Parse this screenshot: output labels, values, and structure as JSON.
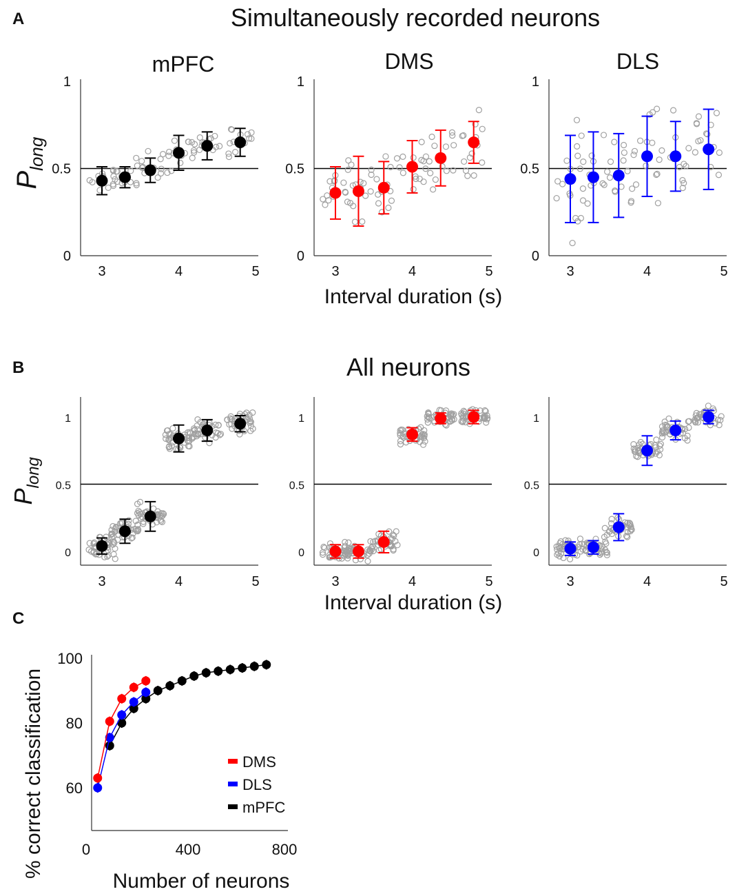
{
  "panel_labels": {
    "a": "A",
    "b": "B",
    "c": "C"
  },
  "titles": {
    "a": "Simultaneously recorded neurons",
    "b": "All neurons"
  },
  "colors": {
    "mPFC": "#000000",
    "DMS": "#ff0000",
    "DLS": "#0000ff",
    "scatter": "#a0a0a0"
  },
  "chart_data": [
    {
      "type": "scatter",
      "panel": "A",
      "ylabel_main": "P",
      "ylabel_sub": "long",
      "xlabel": "Interval duration (s)",
      "xlim": [
        2.75,
        5
      ],
      "ylim": [
        0,
        1
      ],
      "xticks": [
        "3",
        "4",
        "5"
      ],
      "yticks": [
        "0",
        "0.5",
        "1"
      ],
      "reference_line": 0.5,
      "x": [
        3.0,
        3.3,
        3.63,
        4.0,
        4.37,
        4.8
      ],
      "series": [
        {
          "name": "mPFC",
          "mean": [
            0.43,
            0.45,
            0.49,
            0.59,
            0.63,
            0.65
          ],
          "err": [
            0.08,
            0.06,
            0.07,
            0.1,
            0.08,
            0.08
          ],
          "spread": 0.08
        },
        {
          "name": "DMS",
          "mean": [
            0.36,
            0.37,
            0.39,
            0.51,
            0.56,
            0.65
          ],
          "err": [
            0.15,
            0.2,
            0.15,
            0.15,
            0.16,
            0.12
          ],
          "spread": 0.17
        },
        {
          "name": "DLS",
          "mean": [
            0.44,
            0.45,
            0.46,
            0.57,
            0.57,
            0.61
          ],
          "err": [
            0.25,
            0.26,
            0.24,
            0.23,
            0.2,
            0.23
          ],
          "spread": 0.24
        }
      ]
    },
    {
      "type": "scatter",
      "panel": "B",
      "ylabel_main": "P",
      "ylabel_sub": "long",
      "xlabel": "Interval duration (s)",
      "xlim": [
        2.75,
        5
      ],
      "ylim": [
        -0.1,
        1.15
      ],
      "xticks": [
        "3",
        "4",
        "5"
      ],
      "yticks": [
        "0",
        "0.5",
        "1"
      ],
      "reference_line": 0.5,
      "x": [
        3.0,
        3.3,
        3.63,
        4.0,
        4.37,
        4.8
      ],
      "series": [
        {
          "name": "mPFC",
          "mean": [
            0.04,
            0.15,
            0.26,
            0.84,
            0.9,
            0.95
          ],
          "err": [
            0.06,
            0.09,
            0.11,
            0.1,
            0.08,
            0.06
          ],
          "spread": 0.08
        },
        {
          "name": "DMS",
          "mean": [
            0.0,
            0.0,
            0.07,
            0.87,
            0.99,
            1.0
          ],
          "err": [
            0.05,
            0.05,
            0.08,
            0.05,
            0.04,
            0.05
          ],
          "spread": 0.06
        },
        {
          "name": "DLS",
          "mean": [
            0.02,
            0.03,
            0.18,
            0.75,
            0.9,
            1.0
          ],
          "err": [
            0.05,
            0.05,
            0.1,
            0.11,
            0.07,
            0.05
          ],
          "spread": 0.07
        }
      ]
    },
    {
      "type": "line",
      "panel": "C",
      "xlabel": "Number of neurons",
      "ylabel": "% correct classification",
      "xlim": [
        0,
        800
      ],
      "ylim": [
        47,
        100
      ],
      "xticks": [
        "0",
        "400",
        "800"
      ],
      "yticks": [
        "60",
        "80",
        "100"
      ],
      "legend": {
        "placement": "bottom-right",
        "entries": [
          "DMS",
          "DLS",
          "mPFC"
        ]
      },
      "series": [
        {
          "name": "mPFC",
          "x": [
            75,
            125,
            175,
            225,
            275,
            325,
            375,
            425,
            475,
            525,
            575,
            625,
            675,
            725
          ],
          "y": [
            73,
            80,
            84.5,
            87.5,
            90,
            91.5,
            93,
            94.5,
            95.5,
            96,
            96.5,
            97,
            97.5,
            98
          ]
        },
        {
          "name": "DLS",
          "x": [
            25,
            75,
            125,
            175,
            225
          ],
          "y": [
            60,
            75.5,
            82.5,
            86.5,
            89.5
          ]
        },
        {
          "name": "DMS",
          "x": [
            25,
            75,
            125,
            175,
            225
          ],
          "y": [
            63,
            80.5,
            87.5,
            91,
            93
          ]
        }
      ]
    }
  ]
}
